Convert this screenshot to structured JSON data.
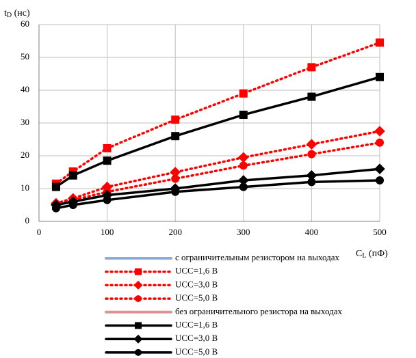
{
  "chart_data": {
    "type": "line",
    "y_label": {
      "main": "t",
      "sub": "D",
      "rest": " (нс)"
    },
    "x_label": {
      "main": "C",
      "sub": "L",
      "rest": " (пФ)"
    },
    "x": [
      25,
      50,
      100,
      200,
      300,
      400,
      500
    ],
    "xlim": [
      0,
      500
    ],
    "xticks": [
      0,
      100,
      200,
      300,
      400,
      500
    ],
    "ylim": [
      0,
      60
    ],
    "yticks": [
      0,
      10,
      20,
      30,
      40,
      50,
      60
    ],
    "grid": true,
    "legend": "bottom",
    "series": [
      {
        "name": "с ограничительным резистором на выходах",
        "color": "#8eaadb",
        "line_style": "plain",
        "marker": "none",
        "values": [
          null,
          null,
          null,
          null,
          null,
          null,
          null
        ]
      },
      {
        "name": "UCC=1,6 В",
        "color": "#ff0000",
        "line_style": "dotted",
        "marker": "square",
        "values": [
          11.5,
          15.2,
          22.3,
          31,
          39,
          47,
          54.5
        ]
      },
      {
        "name": "UCC=3,0 В",
        "color": "#ff0000",
        "line_style": "dotted",
        "marker": "diamond",
        "values": [
          5.5,
          7,
          10.5,
          15,
          19.5,
          23.5,
          27.5
        ]
      },
      {
        "name": "UCC=5,0 В",
        "color": "#ff0000",
        "line_style": "dotted",
        "marker": "circle",
        "values": [
          5,
          6.5,
          9,
          13,
          17,
          20.5,
          24
        ]
      },
      {
        "name": "без ограничительного резистора на выходах",
        "color": "#d99694",
        "line_style": "plain",
        "marker": "none",
        "values": [
          null,
          null,
          null,
          null,
          null,
          null,
          null
        ]
      },
      {
        "name": "UCC=1,6 В",
        "color": "#000000",
        "line_style": "solid",
        "marker": "square",
        "values": [
          10.5,
          14,
          18.5,
          26,
          32.5,
          38,
          44
        ]
      },
      {
        "name": "UCC=3,0 В",
        "color": "#000000",
        "line_style": "solid",
        "marker": "diamond",
        "values": [
          5,
          6,
          8,
          10,
          12.5,
          14,
          16
        ]
      },
      {
        "name": "UCC=5,0 В",
        "color": "#000000",
        "line_style": "solid",
        "marker": "circle",
        "values": [
          4,
          5,
          6.5,
          9,
          10.5,
          12,
          12.5
        ]
      }
    ]
  }
}
